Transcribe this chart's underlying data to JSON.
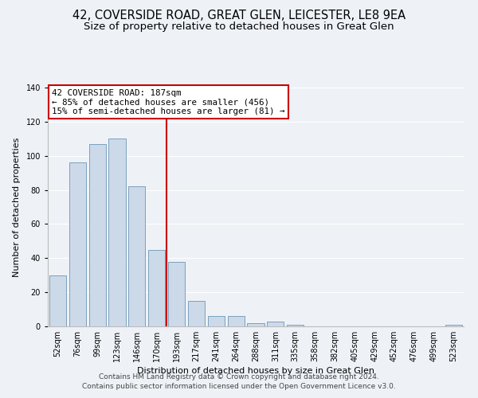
{
  "title": "42, COVERSIDE ROAD, GREAT GLEN, LEICESTER, LE8 9EA",
  "subtitle": "Size of property relative to detached houses in Great Glen",
  "xlabel": "Distribution of detached houses by size in Great Glen",
  "ylabel": "Number of detached properties",
  "bar_labels": [
    "52sqm",
    "76sqm",
    "99sqm",
    "123sqm",
    "146sqm",
    "170sqm",
    "193sqm",
    "217sqm",
    "241sqm",
    "264sqm",
    "288sqm",
    "311sqm",
    "335sqm",
    "358sqm",
    "382sqm",
    "405sqm",
    "429sqm",
    "452sqm",
    "476sqm",
    "499sqm",
    "523sqm"
  ],
  "bar_values": [
    30,
    96,
    107,
    110,
    82,
    45,
    38,
    15,
    6,
    6,
    2,
    3,
    1,
    0,
    0,
    0,
    0,
    0,
    0,
    0,
    1
  ],
  "bar_color": "#ccd9e8",
  "bar_edge_color": "#7ca0be",
  "vline_color": "#cc0000",
  "annotation_title": "42 COVERSIDE ROAD: 187sqm",
  "annotation_line1": "← 85% of detached houses are smaller (456)",
  "annotation_line2": "15% of semi-detached houses are larger (81) →",
  "annotation_box_color": "white",
  "annotation_box_edge": "#cc0000",
  "ylim": [
    0,
    140
  ],
  "yticks": [
    0,
    20,
    40,
    60,
    80,
    100,
    120,
    140
  ],
  "footer1": "Contains HM Land Registry data © Crown copyright and database right 2024.",
  "footer2": "Contains public sector information licensed under the Open Government Licence v3.0.",
  "title_fontsize": 10.5,
  "subtitle_fontsize": 9.5,
  "bg_color": "#eef2f7",
  "grid_color": "#ffffff",
  "tick_fontsize": 7,
  "label_fontsize": 8,
  "footer_fontsize": 6.5,
  "vline_bar_index": 6
}
